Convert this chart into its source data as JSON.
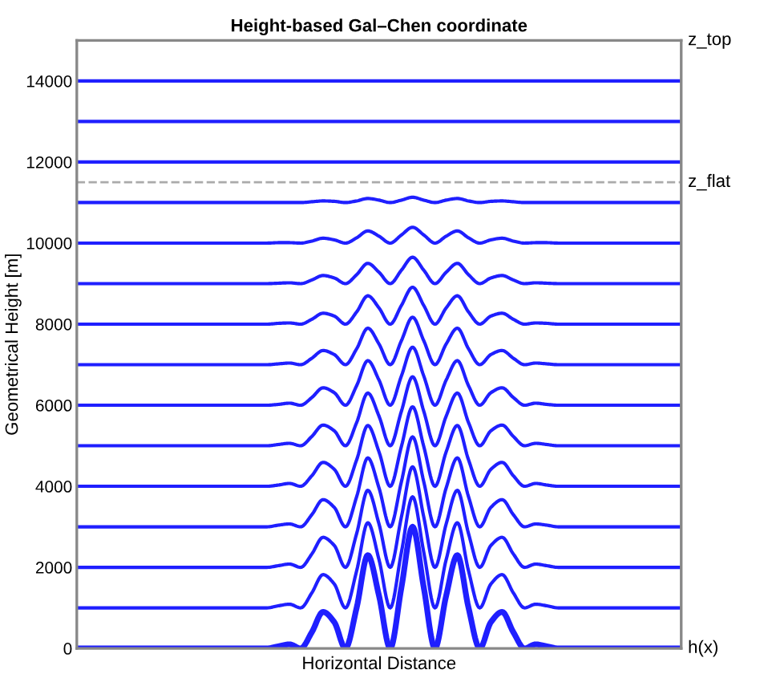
{
  "chart_data": {
    "type": "line",
    "title": "Height-based Gal–Chen coordinate",
    "xlabel": "Horizontal Distance",
    "ylabel": "Geometrical Height [m]",
    "categories": [
      null,
      null,
      null,
      null,
      null,
      null,
      null,
      null,
      null,
      null,
      null,
      null,
      null,
      null,
      null,
      null,
      null,
      null,
      null,
      null,
      null,
      null,
      null,
      null,
      null,
      null,
      null,
      null,
      null,
      null,
      null,
      null,
      null,
      null,
      null,
      null,
      null,
      null,
      null,
      null,
      null,
      null,
      null,
      null,
      null,
      null,
      null,
      null,
      null,
      null,
      null,
      null,
      null,
      null,
      null
    ],
    "ylim": [
      0,
      15000
    ],
    "yticks": [
      0,
      2000,
      4000,
      6000,
      8000,
      10000,
      12000,
      14000
    ],
    "annotations": [
      "z_top"
    ],
    "grid": false,
    "legend": false,
    "marker": "none",
    "line_style": "solid",
    "ref_lines": [
      {
        "axis": "y",
        "value": 11500,
        "label": "z_flat",
        "color": "#aaaaaa",
        "line_style": "dashed"
      }
    ],
    "series": [
      {
        "name": "h(x)",
        "color": "#1f1fff",
        "values": [
          0,
          0,
          0,
          0,
          0,
          0,
          0,
          0,
          0,
          0,
          0,
          0,
          0,
          0,
          0,
          0,
          0,
          0,
          50,
          100,
          0,
          400,
          900,
          650,
          0,
          1000,
          2300,
          1300,
          0,
          1500,
          3000,
          1500,
          0,
          1300,
          2300,
          1000,
          0,
          650,
          900,
          400,
          0,
          100,
          50,
          0,
          0,
          0,
          0,
          0,
          0,
          0,
          0,
          0,
          0,
          0,
          0
        ]
      },
      {
        "color": "#1f1fff",
        "values": [
          1000,
          1000,
          1000,
          1000,
          1000,
          1000,
          1000,
          1000,
          1000,
          1000,
          1000,
          1000,
          1000,
          1000,
          1000,
          1000,
          1000,
          1000,
          1050,
          1090,
          1000,
          1370,
          1820,
          1590,
          1000,
          1910,
          3100,
          2190,
          1000,
          2370,
          3740,
          2370,
          1000,
          2190,
          3100,
          1910,
          1000,
          1590,
          1820,
          1370,
          1000,
          1090,
          1050,
          1000,
          1000,
          1000,
          1000,
          1000,
          1000,
          1000,
          1000,
          1000,
          1000,
          1000,
          1000
        ]
      },
      {
        "color": "#1f1fff",
        "values": [
          2000,
          2000,
          2000,
          2000,
          2000,
          2000,
          2000,
          2000,
          2000,
          2000,
          2000,
          2000,
          2000,
          2000,
          2000,
          2000,
          2000,
          2000,
          2040,
          2080,
          2000,
          2330,
          2740,
          2540,
          2000,
          2830,
          3900,
          3070,
          2000,
          3240,
          4480,
          3240,
          2000,
          3070,
          3900,
          2830,
          2000,
          2540,
          2740,
          2330,
          2000,
          2080,
          2040,
          2000,
          2000,
          2000,
          2000,
          2000,
          2000,
          2000,
          2000,
          2000,
          2000,
          2000,
          2000
        ]
      },
      {
        "color": "#1f1fff",
        "values": [
          3000,
          3000,
          3000,
          3000,
          3000,
          3000,
          3000,
          3000,
          3000,
          3000,
          3000,
          3000,
          3000,
          3000,
          3000,
          3000,
          3000,
          3000,
          3040,
          3070,
          3000,
          3300,
          3670,
          3480,
          3000,
          3740,
          4700,
          3960,
          3000,
          4110,
          5220,
          4110,
          3000,
          3960,
          4700,
          3740,
          3000,
          3480,
          3670,
          3300,
          3000,
          3070,
          3040,
          3000,
          3000,
          3000,
          3000,
          3000,
          3000,
          3000,
          3000,
          3000,
          3000,
          3000,
          3000
        ]
      },
      {
        "color": "#1f1fff",
        "values": [
          4000,
          4000,
          4000,
          4000,
          4000,
          4000,
          4000,
          4000,
          4000,
          4000,
          4000,
          4000,
          4000,
          4000,
          4000,
          4000,
          4000,
          4000,
          4030,
          4070,
          4000,
          4260,
          4590,
          4420,
          4000,
          4650,
          5500,
          4850,
          4000,
          4980,
          5960,
          4980,
          4000,
          4850,
          5500,
          4650,
          4000,
          4420,
          4590,
          4260,
          4000,
          4070,
          4030,
          4000,
          4000,
          4000,
          4000,
          4000,
          4000,
          4000,
          4000,
          4000,
          4000,
          4000,
          4000
        ]
      },
      {
        "color": "#1f1fff",
        "values": [
          5000,
          5000,
          5000,
          5000,
          5000,
          5000,
          5000,
          5000,
          5000,
          5000,
          5000,
          5000,
          5000,
          5000,
          5000,
          5000,
          5000,
          5000,
          5030,
          5060,
          5000,
          5230,
          5510,
          5370,
          5000,
          5570,
          6300,
          5730,
          5000,
          5850,
          6700,
          5850,
          5000,
          5730,
          6300,
          5570,
          5000,
          5370,
          5510,
          5230,
          5000,
          5060,
          5030,
          5000,
          5000,
          5000,
          5000,
          5000,
          5000,
          5000,
          5000,
          5000,
          5000,
          5000,
          5000
        ]
      },
      {
        "color": "#1f1fff",
        "values": [
          6000,
          6000,
          6000,
          6000,
          6000,
          6000,
          6000,
          6000,
          6000,
          6000,
          6000,
          6000,
          6000,
          6000,
          6000,
          6000,
          6000,
          6000,
          6020,
          6050,
          6000,
          6190,
          6430,
          6310,
          6000,
          6480,
          7100,
          6620,
          6000,
          6720,
          7430,
          6720,
          6000,
          6620,
          7100,
          6480,
          6000,
          6310,
          6430,
          6190,
          6000,
          6050,
          6020,
          6000,
          6000,
          6000,
          6000,
          6000,
          6000,
          6000,
          6000,
          6000,
          6000,
          6000,
          6000
        ]
      },
      {
        "color": "#1f1fff",
        "values": [
          7000,
          7000,
          7000,
          7000,
          7000,
          7000,
          7000,
          7000,
          7000,
          7000,
          7000,
          7000,
          7000,
          7000,
          7000,
          7000,
          7000,
          7000,
          7020,
          7040,
          7000,
          7160,
          7350,
          7250,
          7000,
          7390,
          7900,
          7510,
          7000,
          7590,
          8170,
          7590,
          7000,
          7510,
          7900,
          7390,
          7000,
          7250,
          7350,
          7160,
          7000,
          7040,
          7020,
          7000,
          7000,
          7000,
          7000,
          7000,
          7000,
          7000,
          7000,
          7000,
          7000,
          7000,
          7000
        ]
      },
      {
        "color": "#1f1fff",
        "values": [
          8000,
          8000,
          8000,
          8000,
          8000,
          8000,
          8000,
          8000,
          8000,
          8000,
          8000,
          8000,
          8000,
          8000,
          8000,
          8000,
          8000,
          8000,
          8020,
          8030,
          8000,
          8120,
          8270,
          8200,
          8000,
          8300,
          8700,
          8400,
          8000,
          8460,
          8910,
          8460,
          8000,
          8400,
          8700,
          8300,
          8000,
          8200,
          8270,
          8120,
          8000,
          8030,
          8020,
          8000,
          8000,
          8000,
          8000,
          8000,
          8000,
          8000,
          8000,
          8000,
          8000,
          8000,
          8000
        ]
      },
      {
        "color": "#1f1fff",
        "values": [
          9000,
          9000,
          9000,
          9000,
          9000,
          9000,
          9000,
          9000,
          9000,
          9000,
          9000,
          9000,
          9000,
          9000,
          9000,
          9000,
          9000,
          9000,
          9010,
          9020,
          9000,
          9090,
          9200,
          9140,
          9000,
          9220,
          9500,
          9280,
          9000,
          9330,
          9650,
          9330,
          9000,
          9280,
          9500,
          9220,
          9000,
          9140,
          9200,
          9090,
          9000,
          9020,
          9010,
          9000,
          9000,
          9000,
          9000,
          9000,
          9000,
          9000,
          9000,
          9000,
          9000,
          9000,
          9000
        ]
      },
      {
        "color": "#1f1fff",
        "values": [
          10000,
          10000,
          10000,
          10000,
          10000,
          10000,
          10000,
          10000,
          10000,
          10000,
          10000,
          10000,
          10000,
          10000,
          10000,
          10000,
          10000,
          10000,
          10010,
          10010,
          10000,
          10050,
          10120,
          10080,
          10000,
          10130,
          10300,
          10170,
          10000,
          10200,
          10390,
          10200,
          10000,
          10170,
          10300,
          10130,
          10000,
          10080,
          10120,
          10050,
          10000,
          10010,
          10010,
          10000,
          10000,
          10000,
          10000,
          10000,
          10000,
          10000,
          10000,
          10000,
          10000,
          10000,
          10000
        ]
      },
      {
        "color": "#1f1fff",
        "values": [
          11000,
          11000,
          11000,
          11000,
          11000,
          11000,
          11000,
          11000,
          11000,
          11000,
          11000,
          11000,
          11000,
          11000,
          11000,
          11000,
          11000,
          11000,
          11000,
          11000,
          11000,
          11020,
          11040,
          11030,
          11000,
          11040,
          11100,
          11060,
          11000,
          11060,
          11130,
          11060,
          11000,
          11060,
          11100,
          11040,
          11000,
          11030,
          11040,
          11020,
          11000,
          11000,
          11000,
          11000,
          11000,
          11000,
          11000,
          11000,
          11000,
          11000,
          11000,
          11000,
          11000,
          11000,
          11000
        ]
      },
      {
        "color": "#1f1fff",
        "values": [
          12000,
          12000,
          12000,
          12000,
          12000,
          12000,
          12000,
          12000,
          12000,
          12000,
          12000,
          12000,
          12000,
          12000,
          12000,
          12000,
          12000,
          12000,
          12000,
          12000,
          12000,
          12000,
          12000,
          12000,
          12000,
          12000,
          12000,
          12000,
          12000,
          12000,
          12000,
          12000,
          12000,
          12000,
          12000,
          12000,
          12000,
          12000,
          12000,
          12000,
          12000,
          12000,
          12000,
          12000,
          12000,
          12000,
          12000,
          12000,
          12000,
          12000,
          12000,
          12000,
          12000,
          12000,
          12000
        ]
      },
      {
        "color": "#1f1fff",
        "values": [
          13000,
          13000,
          13000,
          13000,
          13000,
          13000,
          13000,
          13000,
          13000,
          13000,
          13000,
          13000,
          13000,
          13000,
          13000,
          13000,
          13000,
          13000,
          13000,
          13000,
          13000,
          13000,
          13000,
          13000,
          13000,
          13000,
          13000,
          13000,
          13000,
          13000,
          13000,
          13000,
          13000,
          13000,
          13000,
          13000,
          13000,
          13000,
          13000,
          13000,
          13000,
          13000,
          13000,
          13000,
          13000,
          13000,
          13000,
          13000,
          13000,
          13000,
          13000,
          13000,
          13000,
          13000,
          13000
        ]
      },
      {
        "color": "#1f1fff",
        "values": [
          14000,
          14000,
          14000,
          14000,
          14000,
          14000,
          14000,
          14000,
          14000,
          14000,
          14000,
          14000,
          14000,
          14000,
          14000,
          14000,
          14000,
          14000,
          14000,
          14000,
          14000,
          14000,
          14000,
          14000,
          14000,
          14000,
          14000,
          14000,
          14000,
          14000,
          14000,
          14000,
          14000,
          14000,
          14000,
          14000,
          14000,
          14000,
          14000,
          14000,
          14000,
          14000,
          14000,
          14000,
          14000,
          14000,
          14000,
          14000,
          14000,
          14000,
          14000,
          14000,
          14000,
          14000,
          14000
        ]
      }
    ]
  }
}
